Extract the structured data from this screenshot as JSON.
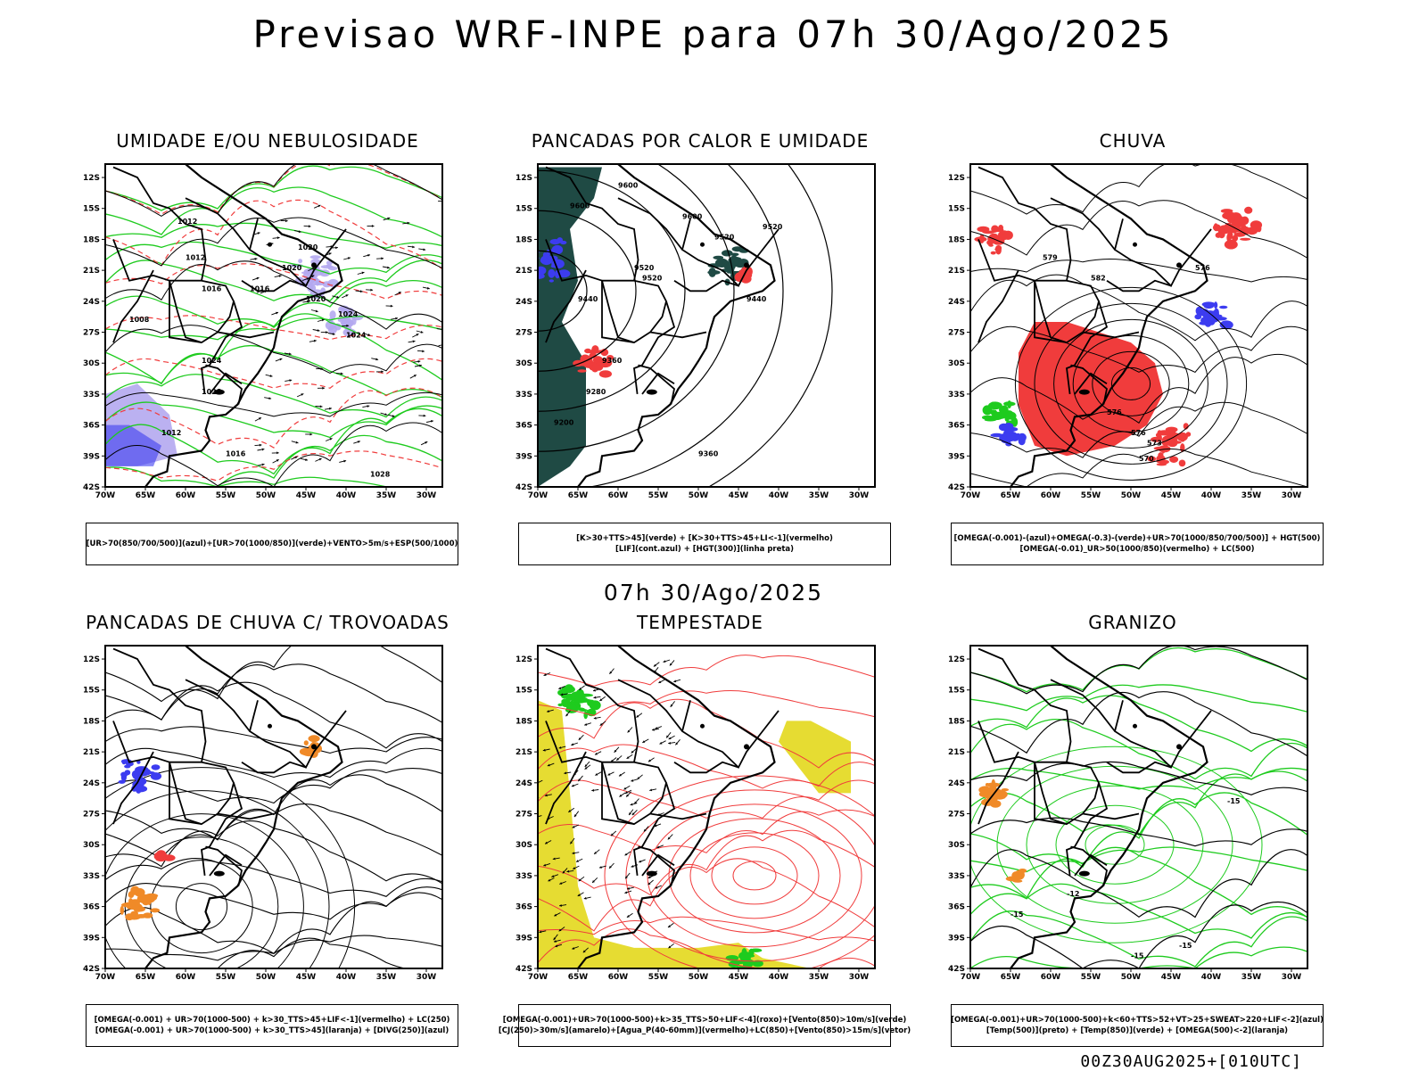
{
  "title": "Previsao WRF-INPE  para 07h 30/Ago/2025",
  "mid_title": "07h 30/Ago/2025",
  "footer": "00Z30AUG2025+[010UTC]",
  "axes": {
    "lat_labels": [
      "12S",
      "15S",
      "18S",
      "21S",
      "24S",
      "27S",
      "30S",
      "33S",
      "36S",
      "39S",
      "42S"
    ],
    "lon_labels": [
      "70W",
      "65W",
      "60W",
      "55W",
      "50W",
      "45W",
      "40W",
      "35W",
      "30W"
    ]
  },
  "colors": {
    "red": "#f03c3c",
    "green": "#1ecb1e",
    "blue": "#3c3cf0",
    "lavender": "#b4a8f0",
    "darkteal": "#1f4a44",
    "yellow": "#e6dc32",
    "orange": "#f08a28"
  },
  "panels": [
    {
      "title": "UMIDADE E/OU NEBULOSIDADE",
      "legend": [
        "[UR>70(850/700/500)](azul)+[UR>70(1000/850)](verde)+VENTO>5m/s+ESP(500/1000)"
      ],
      "contour_labels": [
        "1012",
        "1012",
        "1016",
        "1016",
        "1020",
        "1020",
        "1020",
        "1024",
        "1024",
        "1028",
        "1024",
        "1028",
        "1012",
        "1016",
        "1008"
      ]
    },
    {
      "title": "PANCADAS POR CALOR E UMIDADE",
      "legend": [
        "[K>30+TTS>45](verde) + [K>30+TTS>45+LI<-1](vermelho)",
        "[LIF](cont.azul) + [HGT(300)](linha preta)"
      ],
      "contour_labels": [
        "9600",
        "9600",
        "9520",
        "9520",
        "9520",
        "9600",
        "9440",
        "9440",
        "9360",
        "9280",
        "9200",
        "9360",
        "9520"
      ]
    },
    {
      "title": "CHUVA",
      "legend": [
        "[OMEGA(-0.001)-(azul)+OMEGA(-0.3)-(verde)+UR>70(1000/850/700/500)] + HGT(500)",
        "[OMEGA(-0.01)_UR>50(1000/850)(vermelho) + LC(500)"
      ],
      "contour_labels": [
        "576",
        "576",
        "573",
        "570",
        "582",
        "579",
        "576"
      ]
    },
    {
      "title": "PANCADAS DE CHUVA C/ TROVOADAS",
      "legend": [
        "[OMEGA(-0.001) + UR>70(1000-500) + k>30_TTS>45+LIF<-1](vermelho) + LC(250)",
        "[OMEGA(-0.001) + UR>70(1000-500) + k>30_TTS>45](laranja) + [DIVG(250)](azul)"
      ],
      "contour_labels": []
    },
    {
      "title": "TEMPESTADE",
      "legend": [
        "[OMEGA(-0.001)+UR>70(1000-500)+k>35_TTS>50+LIF<-4](roxo)+[Vento(850)>10m/s](verde)",
        "[CJ(250)>30m/s](amarelo)+[Agua_P(40-60mm)](vermelho)+LC(850)+[Vento(850)>15m/s](vetor)"
      ],
      "contour_labels": []
    },
    {
      "title": "GRANIZO",
      "legend": [
        "[OMEGA(-0.001)+UR>70(1000-500)+k<60+TTS>52+VT>25+SWEAT>220+LIF<-2](azul)",
        "[Temp(500)](preto) + [Temp(850)](verde) + [OMEGA(500)<-2](laranja)"
      ],
      "contour_labels": [
        "-15",
        "-15",
        "-15",
        "-12",
        "-15"
      ]
    }
  ]
}
